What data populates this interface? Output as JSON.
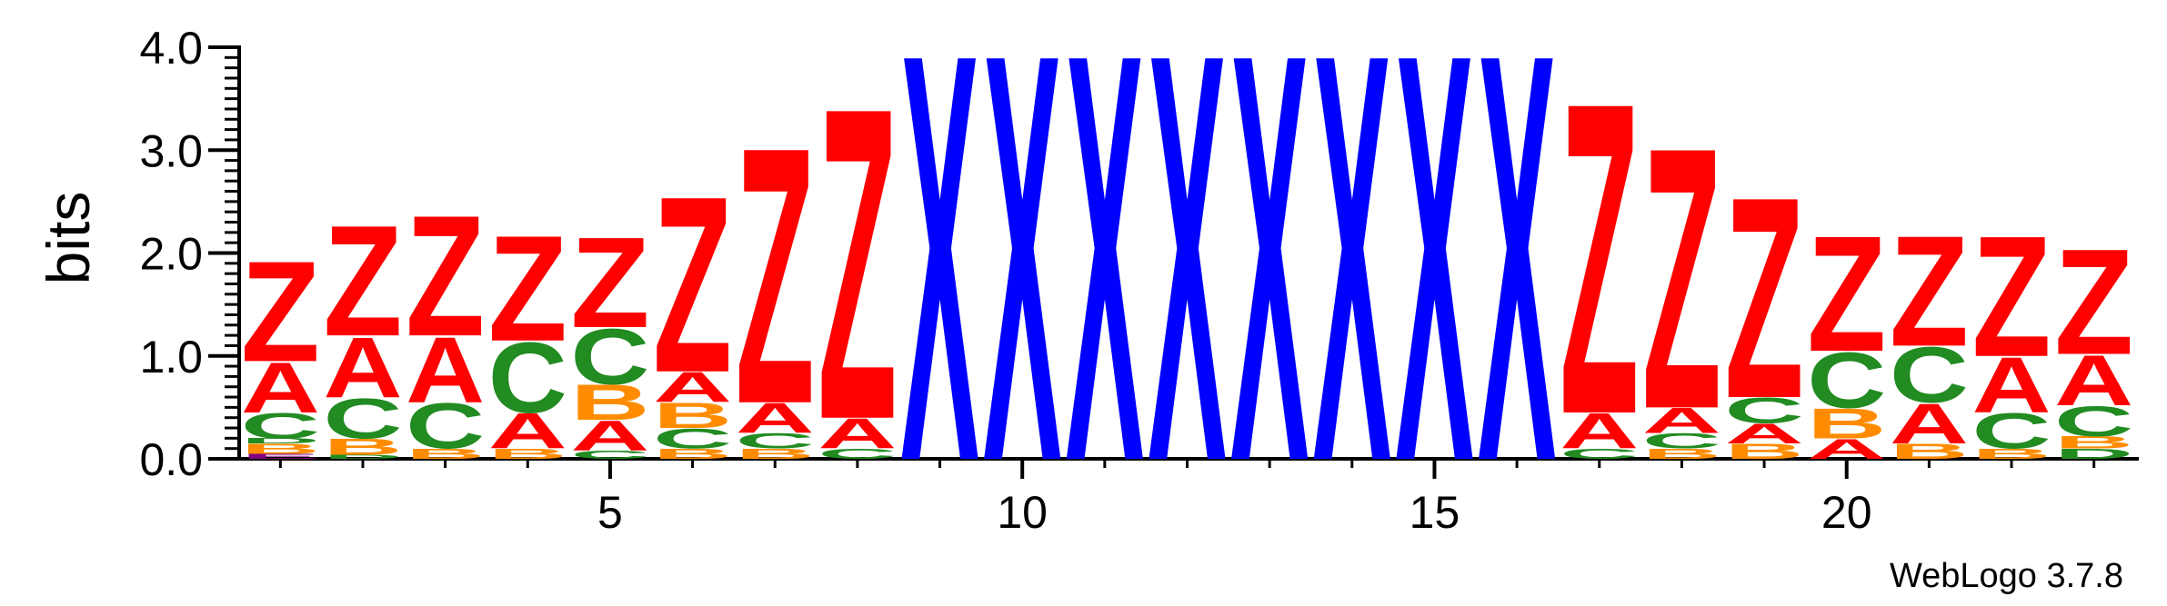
{
  "chart_data": {
    "type": "sequence-logo",
    "ylabel": "bits",
    "ylim": [
      0,
      4.0
    ],
    "yticks": [
      "0.0",
      "1.0",
      "2.0",
      "3.0",
      "4.0"
    ],
    "xticks": [
      {
        "position": 5,
        "label": "5"
      },
      {
        "position": 10,
        "label": "10"
      },
      {
        "position": 15,
        "label": "15"
      },
      {
        "position": 20,
        "label": "20"
      }
    ],
    "positions": 23,
    "footer": "WebLogo 3.7.8",
    "colors": {
      "Z": "#ff0000",
      "A": "#ff0000",
      "X": "#0000ff",
      "C": "#228b22",
      "B": "#ff8c00",
      "D": "#228b22",
      "E": "#800080"
    },
    "stacks": [
      [
        {
          "l": "E",
          "v": 0.05
        },
        {
          "l": "B",
          "v": 0.1
        },
        {
          "l": "D",
          "v": 0.05
        },
        {
          "l": "C",
          "v": 0.25
        },
        {
          "l": "A",
          "v": 0.5
        },
        {
          "l": "Z",
          "v": 1.0
        }
      ],
      [
        {
          "l": "D",
          "v": 0.04
        },
        {
          "l": "B",
          "v": 0.16
        },
        {
          "l": "C",
          "v": 0.4
        },
        {
          "l": "A",
          "v": 0.6
        },
        {
          "l": "Z",
          "v": 1.1
        }
      ],
      [
        {
          "l": "B",
          "v": 0.1
        },
        {
          "l": "C",
          "v": 0.45
        },
        {
          "l": "A",
          "v": 0.65
        },
        {
          "l": "Z",
          "v": 1.2
        }
      ],
      [
        {
          "l": "B",
          "v": 0.1
        },
        {
          "l": "A",
          "v": 0.35
        },
        {
          "l": "C",
          "v": 0.7
        },
        {
          "l": "Z",
          "v": 1.05
        }
      ],
      [
        {
          "l": "C",
          "v": 0.08
        },
        {
          "l": "A",
          "v": 0.3
        },
        {
          "l": "B",
          "v": 0.35
        },
        {
          "l": "C",
          "v": 0.55
        },
        {
          "l": "Z",
          "v": 0.9
        }
      ],
      [
        {
          "l": "B",
          "v": 0.1
        },
        {
          "l": "C",
          "v": 0.2
        },
        {
          "l": "B",
          "v": 0.25
        },
        {
          "l": "A",
          "v": 0.3
        },
        {
          "l": "Z",
          "v": 1.75
        }
      ],
      [
        {
          "l": "B",
          "v": 0.1
        },
        {
          "l": "C",
          "v": 0.15
        },
        {
          "l": "A",
          "v": 0.3
        },
        {
          "l": "Z",
          "v": 2.55
        }
      ],
      [
        {
          "l": "C",
          "v": 0.1
        },
        {
          "l": "A",
          "v": 0.3
        },
        {
          "l": "Z",
          "v": 3.1
        }
      ],
      [
        {
          "l": "X",
          "v": 4.05
        }
      ],
      [
        {
          "l": "X",
          "v": 4.05
        }
      ],
      [
        {
          "l": "X",
          "v": 4.05
        }
      ],
      [
        {
          "l": "X",
          "v": 4.05
        }
      ],
      [
        {
          "l": "X",
          "v": 4.05
        }
      ],
      [
        {
          "l": "X",
          "v": 4.05
        }
      ],
      [
        {
          "l": "X",
          "v": 4.05
        }
      ],
      [
        {
          "l": "X",
          "v": 4.05
        }
      ],
      [
        {
          "l": "C",
          "v": 0.1
        },
        {
          "l": "A",
          "v": 0.35
        },
        {
          "l": "Z",
          "v": 3.1
        }
      ],
      [
        {
          "l": "B",
          "v": 0.1
        },
        {
          "l": "C",
          "v": 0.15
        },
        {
          "l": "A",
          "v": 0.25
        },
        {
          "l": "Z",
          "v": 2.6
        }
      ],
      [
        {
          "l": "B",
          "v": 0.15
        },
        {
          "l": "A",
          "v": 0.2
        },
        {
          "l": "C",
          "v": 0.25
        },
        {
          "l": "Z",
          "v": 2.0
        }
      ],
      [
        {
          "l": "A",
          "v": 0.2
        },
        {
          "l": "B",
          "v": 0.3
        },
        {
          "l": "C",
          "v": 0.55
        },
        {
          "l": "Z",
          "v": 1.15
        }
      ],
      [
        {
          "l": "B",
          "v": 0.15
        },
        {
          "l": "A",
          "v": 0.4
        },
        {
          "l": "C",
          "v": 0.55
        },
        {
          "l": "Z",
          "v": 1.1
        }
      ],
      [
        {
          "l": "B",
          "v": 0.1
        },
        {
          "l": "C",
          "v": 0.35
        },
        {
          "l": "A",
          "v": 0.55
        },
        {
          "l": "Z",
          "v": 1.2
        }
      ],
      [
        {
          "l": "D",
          "v": 0.1
        },
        {
          "l": "B",
          "v": 0.12
        },
        {
          "l": "C",
          "v": 0.3
        },
        {
          "l": "A",
          "v": 0.5
        },
        {
          "l": "Z",
          "v": 1.05
        }
      ]
    ]
  }
}
